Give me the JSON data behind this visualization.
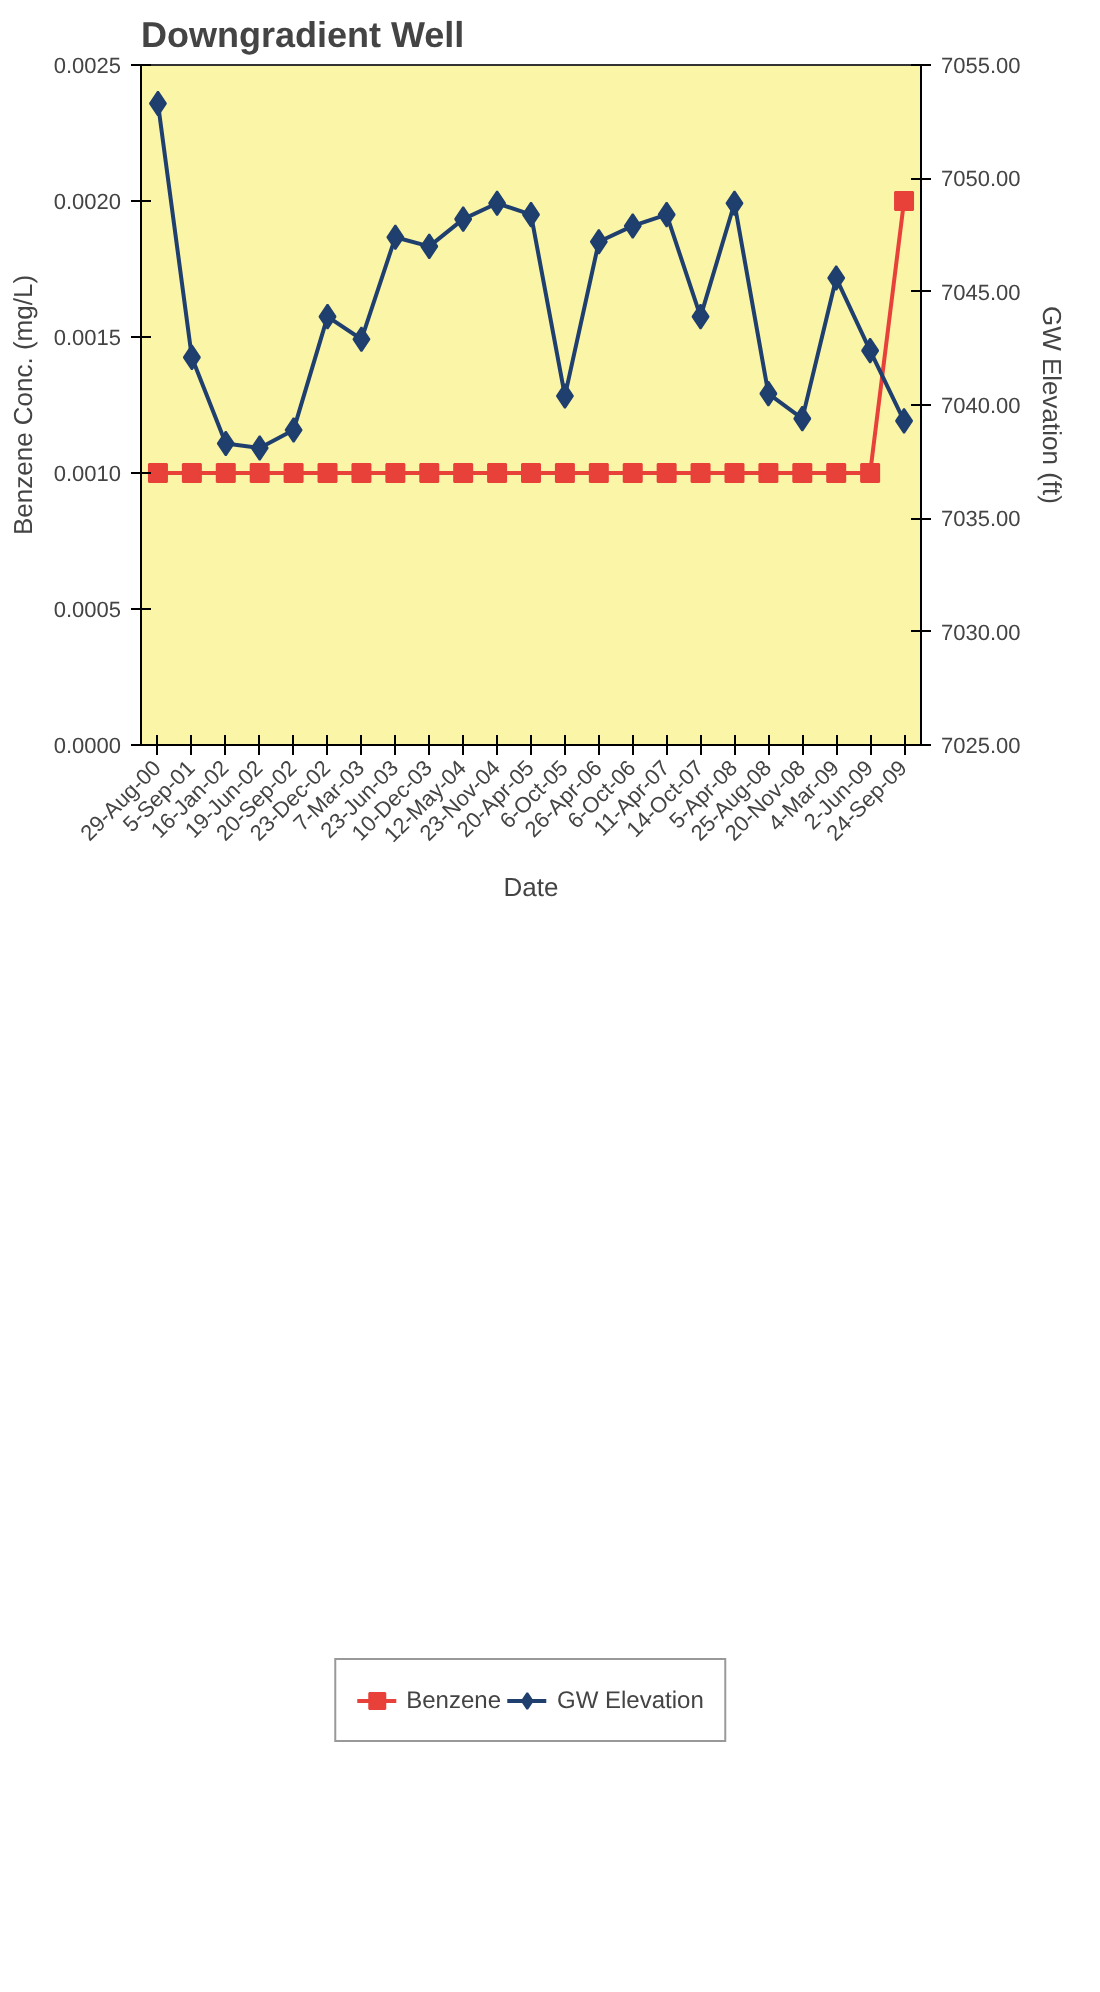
{
  "chart_data": {
    "type": "line",
    "title": "Downgradient  Well",
    "xlabel": "Date",
    "ylabel": "Benzene Conc. (mg/L)",
    "y2label": "GW Elevation (ft)",
    "categories": [
      "29-Aug-00",
      "5-Sep-01",
      "16-Jan-02",
      "19-Jun-02",
      "20-Sep-02",
      "23-Dec-02",
      "7-Mar-03",
      "23-Jun-03",
      "10-Dec-03",
      "12-May-04",
      "23-Nov-04",
      "20-Apr-05",
      "6-Oct-05",
      "26-Apr-06",
      "6-Oct-06",
      "11-Apr-07",
      "14-Oct-07",
      "5-Apr-08",
      "25-Aug-08",
      "20-Nov-08",
      "4-Mar-09",
      "2-Jun-09",
      "24-Sep-09"
    ],
    "series": [
      {
        "name": "Benzene",
        "color": "#e8413a",
        "marker": "square",
        "values": [
          0.001,
          0.001,
          0.001,
          0.001,
          0.001,
          0.001,
          0.001,
          0.001,
          0.001,
          0.001,
          0.001,
          0.001,
          0.001,
          0.001,
          0.001,
          0.001,
          0.001,
          0.001,
          0.001,
          0.001,
          0.001,
          0.001,
          0.002
        ]
      },
      {
        "name": "GW Elevation",
        "color": "#1f3f6e",
        "marker": "diamond",
        "axis": "y2",
        "values": [
          7053.3,
          7042.1,
          7038.3,
          7038.1,
          7038.9,
          7043.9,
          7042.9,
          7047.4,
          7047.0,
          7048.2,
          7048.9,
          7048.4,
          7040.4,
          7047.2,
          7047.9,
          7048.4,
          7043.9,
          7048.9,
          7040.5,
          7039.4,
          7045.6,
          7042.4,
          7039.3
        ]
      }
    ],
    "ylim": [
      0,
      0.0025
    ],
    "yticks": [
      {
        "value": 0,
        "label": "0.0000"
      },
      {
        "value": 0.0005,
        "label": "0.0005"
      },
      {
        "value": 0.001,
        "label": "0.0010"
      },
      {
        "value": 0.0015,
        "label": "0.0015"
      },
      {
        "value": 0.002,
        "label": "0.0020"
      },
      {
        "value": 0.0025,
        "label": "0.0025"
      }
    ],
    "y2lim": [
      7025,
      7055
    ],
    "y2ticks": [
      {
        "value": 7025,
        "label": "7025.00"
      },
      {
        "value": 7030,
        "label": "7030.00"
      },
      {
        "value": 7035,
        "label": "7035.00"
      },
      {
        "value": 7040,
        "label": "7040.00"
      },
      {
        "value": 7045,
        "label": "7045.00"
      },
      {
        "value": 7050,
        "label": "7050.00"
      },
      {
        "value": 7055,
        "label": "7055.00"
      }
    ],
    "legend": "bottom",
    "grid": false
  }
}
